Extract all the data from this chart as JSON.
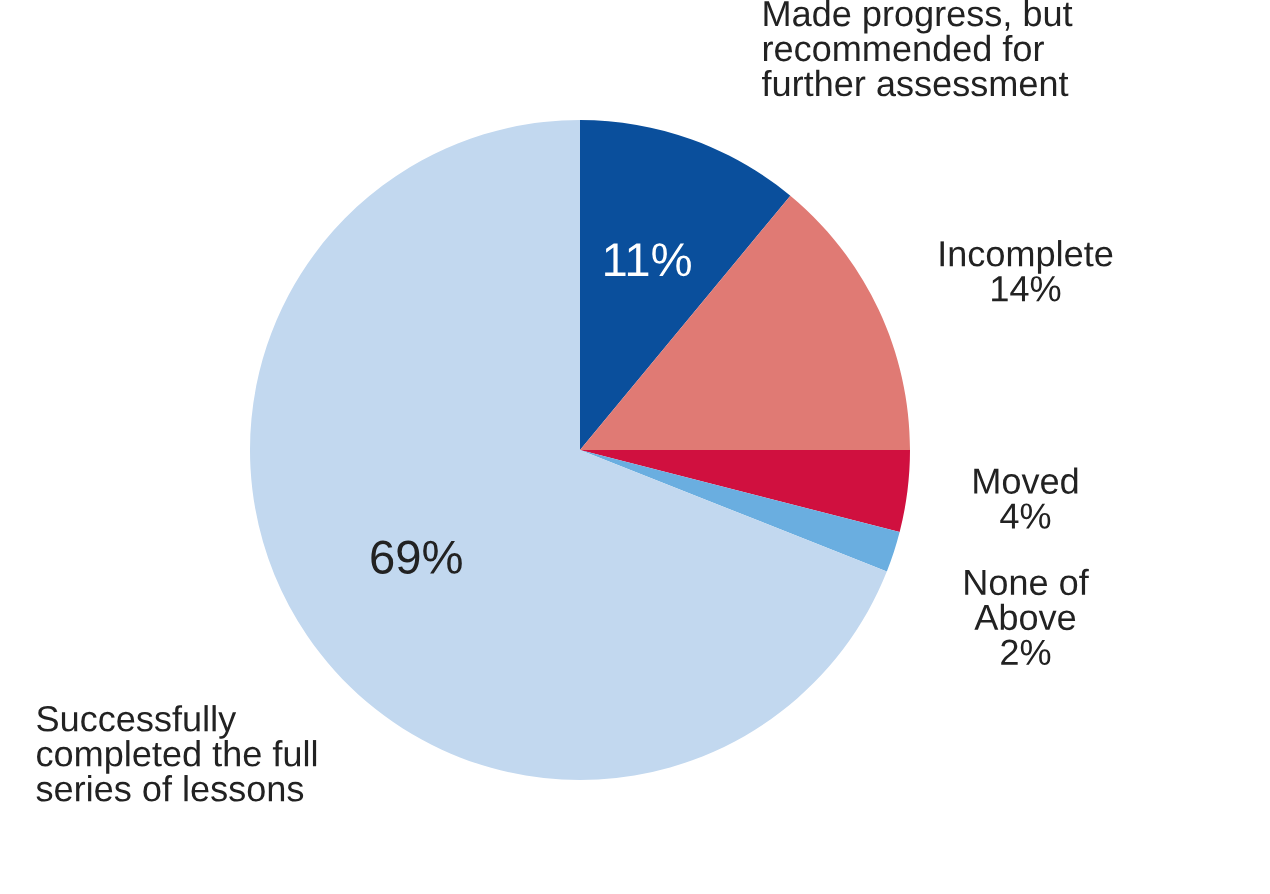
{
  "chart_data": {
    "type": "pie",
    "categories": [
      "Made progress, but\nrecommended for\nfurther assessment",
      "Incomplete",
      "Moved",
      "None of\nAbove",
      "Successfully\ncompleted the full\nseries of lessons"
    ],
    "values": [
      11,
      14,
      4,
      2,
      69
    ],
    "value_labels": [
      "11%",
      "14%",
      "4%",
      "2%",
      "69%"
    ],
    "colors": [
      "#0a4f9c",
      "#e07a74",
      "#d0103f",
      "#6aaee0",
      "#c2d8ef"
    ]
  }
}
